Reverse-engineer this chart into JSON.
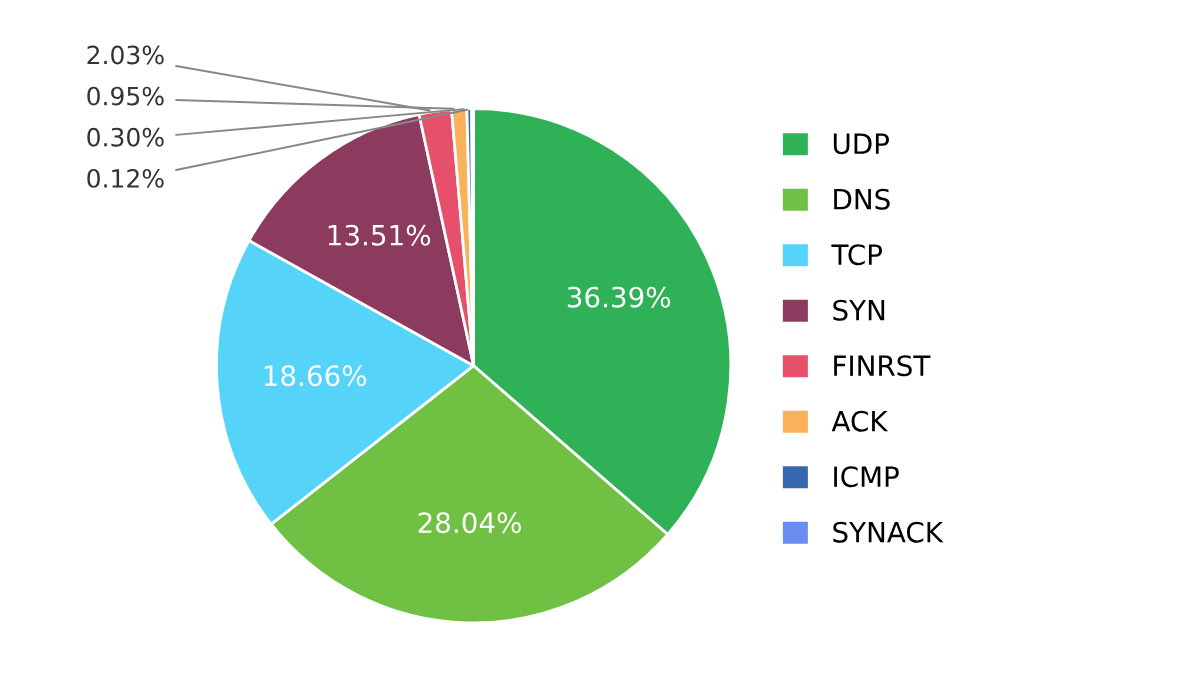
{
  "chart_data": {
    "type": "pie",
    "categories": [
      "UDP",
      "DNS",
      "TCP",
      "SYN",
      "FINRST",
      "ACK",
      "ICMP",
      "SYNACK"
    ],
    "values": [
      36.39,
      28.04,
      18.66,
      13.51,
      2.03,
      0.95,
      0.3,
      0.12
    ],
    "colors": [
      "#2fb157",
      "#6fc043",
      "#56d3f8",
      "#8c3a5e",
      "#e6506a",
      "#f9b25a",
      "#3769b0",
      "#6a8df4"
    ],
    "value_labels": [
      "36.39%",
      "28.04%",
      "18.66%",
      "13.51%",
      "2.03%",
      "0.95%",
      "0.30%",
      "0.12%"
    ],
    "legend": "right"
  }
}
